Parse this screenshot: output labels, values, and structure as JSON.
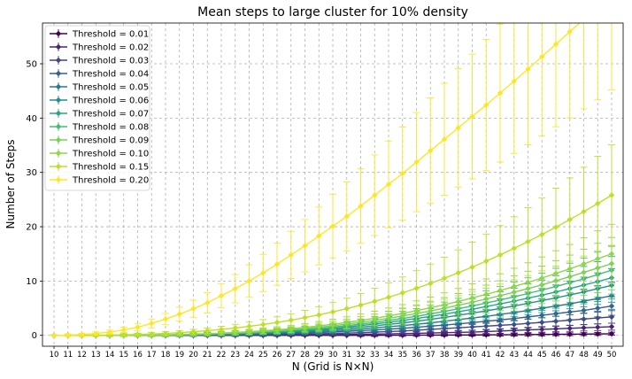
{
  "chart_data": {
    "type": "line",
    "title": "Mean steps to large cluster for 10% density",
    "xlabel": "N (Grid is N×N)",
    "ylabel": "Number of Steps",
    "x": [
      10,
      11,
      12,
      13,
      14,
      15,
      16,
      17,
      18,
      19,
      20,
      21,
      22,
      23,
      24,
      25,
      26,
      27,
      28,
      29,
      30,
      31,
      32,
      33,
      34,
      35,
      36,
      37,
      38,
      39,
      40,
      41,
      42,
      43,
      44,
      45,
      46,
      47,
      48,
      49,
      50
    ],
    "yticks": [
      0,
      10,
      20,
      30,
      40,
      50
    ],
    "ylim": [
      -2,
      57.5
    ],
    "grid": true,
    "legend_placement": "top-left",
    "marker": "diamond",
    "series": [
      {
        "name": "Threshold = 0.01",
        "color": "#440154",
        "err_scale": 0.8,
        "values": [
          0,
          0,
          0,
          0,
          0,
          0,
          0,
          0,
          0,
          0,
          0,
          0,
          0,
          0,
          0,
          0,
          0,
          0,
          0,
          0,
          0,
          0,
          0.01,
          0.01,
          0.02,
          0.03,
          0.04,
          0.05,
          0.06,
          0.07,
          0.08,
          0.1,
          0.11,
          0.13,
          0.15,
          0.17,
          0.19,
          0.21,
          0.23,
          0.26,
          0.3
        ]
      },
      {
        "name": "Threshold = 0.02",
        "color": "#482475",
        "err_scale": 0.8,
        "values": [
          0,
          0,
          0,
          0,
          0,
          0,
          0,
          0,
          0,
          0,
          0,
          0,
          0.01,
          0.01,
          0.02,
          0.03,
          0.05,
          0.07,
          0.09,
          0.11,
          0.13,
          0.17,
          0.2,
          0.24,
          0.28,
          0.33,
          0.38,
          0.43,
          0.49,
          0.55,
          0.6,
          0.7,
          0.8,
          0.9,
          1.0,
          1.1,
          1.2,
          1.3,
          1.4,
          1.5,
          1.6
        ]
      },
      {
        "name": "Threshold = 0.03",
        "color": "#414487",
        "err_scale": 0.8,
        "values": [
          0,
          0,
          0,
          0,
          0,
          0,
          0,
          0,
          0.01,
          0.01,
          0.02,
          0.04,
          0.06,
          0.08,
          0.1,
          0.13,
          0.17,
          0.21,
          0.25,
          0.3,
          0.35,
          0.42,
          0.5,
          0.6,
          0.7,
          0.8,
          0.95,
          1.1,
          1.25,
          1.4,
          1.55,
          1.7,
          1.85,
          2.0,
          2.2,
          2.4,
          2.6,
          2.8,
          3.0,
          3.2,
          3.4
        ]
      },
      {
        "name": "Threshold = 0.04",
        "color": "#355f8d",
        "err_scale": 0.8,
        "values": [
          0,
          0,
          0,
          0,
          0,
          0,
          0,
          0.01,
          0.02,
          0.03,
          0.05,
          0.07,
          0.1,
          0.14,
          0.18,
          0.23,
          0.29,
          0.36,
          0.44,
          0.53,
          0.63,
          0.75,
          0.87,
          1.0,
          1.15,
          1.3,
          1.5,
          1.7,
          1.9,
          2.1,
          2.35,
          2.6,
          2.85,
          3.1,
          3.4,
          3.7,
          4.0,
          4.3,
          4.6,
          5.0,
          5.4
        ]
      },
      {
        "name": "Threshold = 0.05",
        "color": "#2a788e",
        "err_scale": 0.9,
        "values": [
          0,
          0,
          0,
          0,
          0,
          0,
          0.01,
          0.02,
          0.03,
          0.05,
          0.08,
          0.11,
          0.15,
          0.2,
          0.26,
          0.33,
          0.41,
          0.5,
          0.6,
          0.72,
          0.85,
          1.0,
          1.2,
          1.4,
          1.6,
          1.8,
          2.05,
          2.3,
          2.6,
          2.9,
          3.2,
          3.5,
          3.85,
          4.2,
          4.6,
          5.0,
          5.4,
          5.8,
          6.3,
          6.8,
          7.3
        ]
      },
      {
        "name": "Threshold = 0.06",
        "color": "#21918c",
        "err_scale": 0.9,
        "values": [
          0,
          0,
          0,
          0,
          0,
          0,
          0.01,
          0.03,
          0.05,
          0.08,
          0.11,
          0.15,
          0.2,
          0.26,
          0.33,
          0.42,
          0.52,
          0.64,
          0.77,
          0.92,
          1.08,
          1.3,
          1.52,
          1.76,
          2.02,
          2.3,
          2.6,
          2.95,
          3.3,
          3.7,
          4.1,
          4.5,
          4.95,
          5.4,
          5.9,
          6.4,
          6.9,
          7.45,
          8.0,
          8.6,
          9.2
        ]
      },
      {
        "name": "Threshold = 0.07",
        "color": "#22a884",
        "err_scale": 1.0,
        "values": [
          0,
          0,
          0,
          0,
          0,
          0.01,
          0.02,
          0.04,
          0.06,
          0.1,
          0.14,
          0.19,
          0.25,
          0.32,
          0.4,
          0.5,
          0.62,
          0.76,
          0.92,
          1.1,
          1.3,
          1.55,
          1.8,
          2.1,
          2.4,
          2.75,
          3.1,
          3.5,
          3.9,
          4.35,
          4.8,
          5.3,
          5.8,
          6.3,
          6.85,
          7.4,
          8.0,
          8.6,
          9.25,
          9.9,
          10.6
        ]
      },
      {
        "name": "Threshold = 0.08",
        "color": "#44bf70",
        "err_scale": 1.0,
        "values": [
          0,
          0,
          0,
          0,
          0,
          0.01,
          0.02,
          0.04,
          0.07,
          0.11,
          0.16,
          0.22,
          0.29,
          0.38,
          0.48,
          0.6,
          0.74,
          0.9,
          1.08,
          1.28,
          1.5,
          1.78,
          2.08,
          2.4,
          2.75,
          3.12,
          3.52,
          3.95,
          4.4,
          4.9,
          5.4,
          5.95,
          6.5,
          7.1,
          7.7,
          8.35,
          9.0,
          9.7,
          10.4,
          11.2,
          12.0
        ]
      },
      {
        "name": "Threshold = 0.09",
        "color": "#7ad151",
        "err_scale": 1.0,
        "values": [
          0,
          0,
          0,
          0,
          0,
          0.01,
          0.03,
          0.05,
          0.09,
          0.14,
          0.2,
          0.27,
          0.35,
          0.45,
          0.57,
          0.71,
          0.87,
          1.05,
          1.26,
          1.5,
          1.76,
          2.06,
          2.4,
          2.76,
          3.15,
          3.57,
          4.02,
          4.5,
          5.0,
          5.55,
          6.1,
          6.7,
          7.3,
          7.95,
          8.6,
          9.3,
          10.05,
          10.8,
          11.6,
          12.4,
          13.2
        ]
      },
      {
        "name": "Threshold = 0.10",
        "color": "#8fd744",
        "err_scale": 1.0,
        "values": [
          0,
          0,
          0,
          0,
          0.01,
          0.02,
          0.04,
          0.07,
          0.11,
          0.17,
          0.24,
          0.32,
          0.42,
          0.54,
          0.68,
          0.84,
          1.02,
          1.23,
          1.47,
          1.74,
          2.04,
          2.38,
          2.75,
          3.15,
          3.58,
          4.05,
          4.55,
          5.08,
          5.65,
          6.25,
          6.9,
          7.55,
          8.25,
          9.0,
          9.75,
          10.55,
          11.4,
          12.25,
          13.15,
          14.1,
          15.0
        ]
      },
      {
        "name": "Threshold = 0.15",
        "color": "#bddf26",
        "err_scale": 1.0,
        "values": [
          0,
          0,
          0.01,
          0.03,
          0.06,
          0.1,
          0.16,
          0.25,
          0.36,
          0.5,
          0.67,
          0.87,
          1.1,
          1.36,
          1.66,
          2.0,
          2.38,
          2.8,
          3.26,
          3.77,
          4.32,
          4.92,
          5.57,
          6.27,
          7.02,
          7.82,
          8.67,
          9.57,
          10.52,
          11.52,
          12.57,
          13.67,
          14.82,
          16.02,
          17.27,
          18.57,
          19.92,
          21.32,
          22.77,
          24.27,
          25.82
        ]
      },
      {
        "name": "Threshold = 0.20",
        "color": "#fde725",
        "err_scale": 0.8,
        "values": [
          0,
          0.05,
          0.15,
          0.35,
          0.6,
          1.0,
          1.5,
          2.2,
          3.0,
          3.9,
          4.9,
          6.0,
          7.3,
          8.6,
          10.0,
          11.5,
          13.1,
          14.8,
          16.5,
          18.3,
          20.1,
          21.9,
          23.8,
          25.8,
          27.8,
          29.8,
          31.9,
          34.0,
          36.1,
          38.2,
          40.3,
          42.4,
          44.6,
          46.8,
          49.0,
          51.3,
          53.6,
          55.9,
          58.2,
          60.6,
          63.0
        ]
      }
    ]
  }
}
